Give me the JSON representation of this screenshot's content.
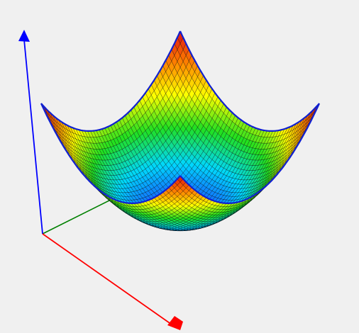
{
  "chart_data": {
    "type": "surface",
    "function": "z = x^2 + y^2",
    "x_range": [
      -1,
      1
    ],
    "y_range": [
      -1,
      1
    ],
    "z_range": [
      0,
      2
    ],
    "grid_resolution": 48,
    "colormap": [
      "#1a3cff",
      "#00d8ff",
      "#20e020",
      "#ffff00",
      "#ff8000",
      "#e01010"
    ],
    "mesh_line_color": "#000000",
    "boundary_color": "#1020d0",
    "axes": {
      "x": {
        "color": "#ff0000"
      },
      "y": {
        "color": "#008000"
      },
      "z": {
        "color": "#0000ff"
      }
    },
    "background": "#f0f0f0",
    "title": "",
    "xlabel": "",
    "ylabel": "",
    "zlabel": ""
  }
}
